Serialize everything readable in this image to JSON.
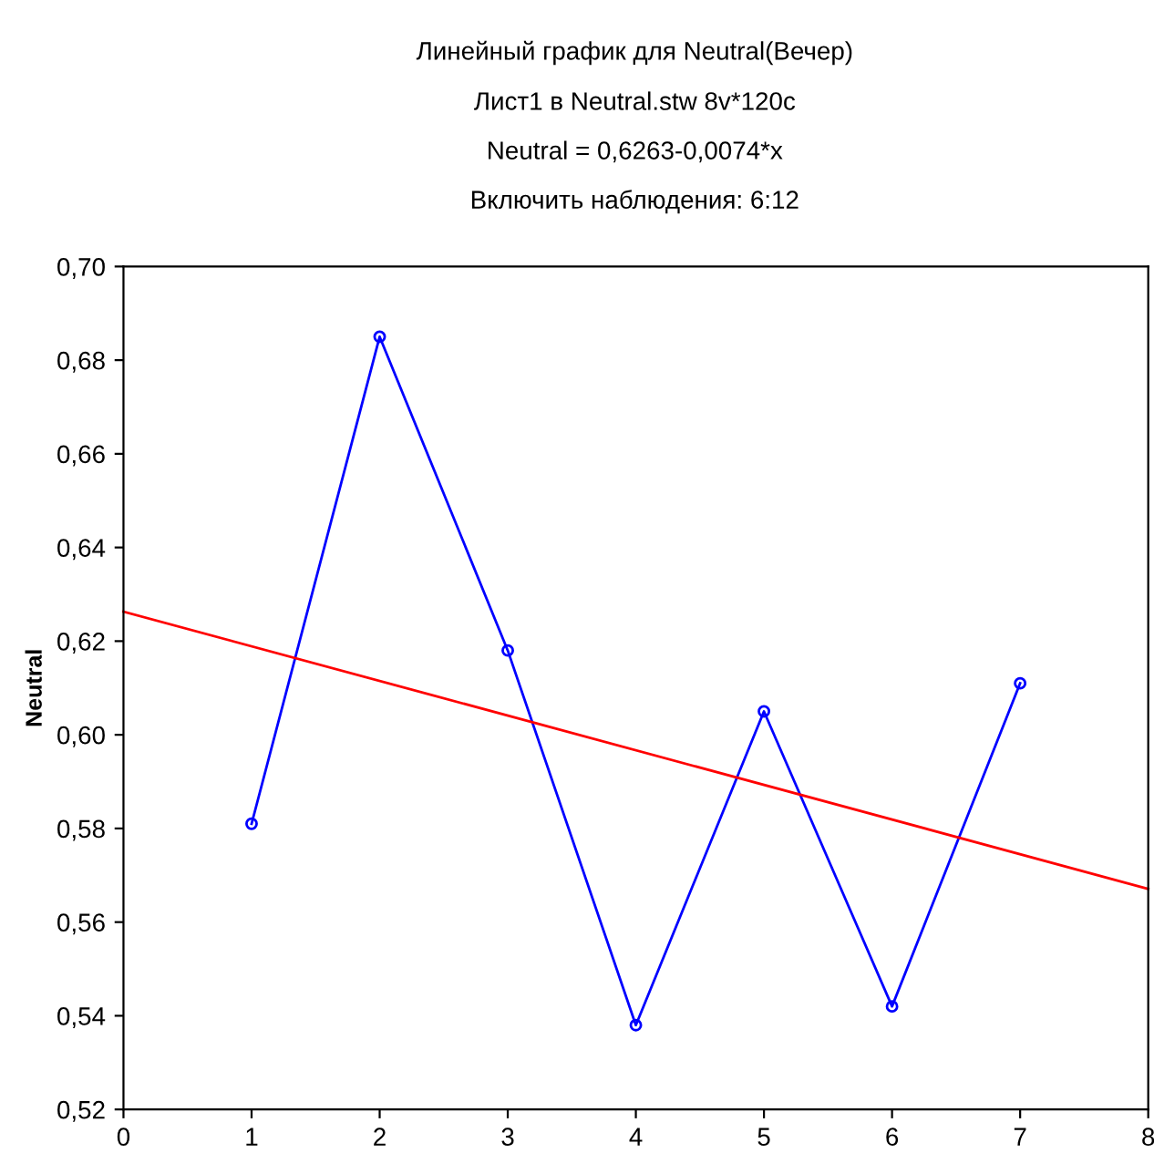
{
  "chart_data": {
    "type": "line",
    "title": "Линейный график для Neutral(Вечер)",
    "subtitle": "Лист1 в Neutral.stw 8v*120c\nNeutral = 0,6263-0,0074*x\nВключить наблюдения: 6:12",
    "ylabel": "Neutral",
    "series": [
      {
        "color": "#0000ff",
        "marker": "circle",
        "x": [
          1,
          2,
          3,
          4,
          5,
          6,
          7
        ],
        "values": [
          0.581,
          0.685,
          0.618,
          0.538,
          0.605,
          0.542,
          0.611
        ]
      },
      {
        "color": "#ff0000",
        "marker": "none",
        "x": [
          0,
          8
        ],
        "values": [
          0.6263,
          0.5671
        ]
      }
    ],
    "xlim": [
      0,
      8
    ],
    "xticks": [
      0,
      1,
      2,
      3,
      4,
      5,
      6,
      7,
      8
    ],
    "ylim": [
      0.52,
      0.7
    ],
    "yticks": [
      {
        "value": 0.52,
        "label": "0,52"
      },
      {
        "value": 0.54,
        "label": "0,54"
      },
      {
        "value": 0.56,
        "label": "0,56"
      },
      {
        "value": 0.58,
        "label": "0,58"
      },
      {
        "value": 0.6,
        "label": "0,60"
      },
      {
        "value": 0.62,
        "label": "0,62"
      },
      {
        "value": 0.64,
        "label": "0,64"
      },
      {
        "value": 0.66,
        "label": "0,66"
      },
      {
        "value": 0.68,
        "label": "0,68"
      },
      {
        "value": 0.7,
        "label": "0,70"
      }
    ],
    "grid": false,
    "legend": false
  }
}
